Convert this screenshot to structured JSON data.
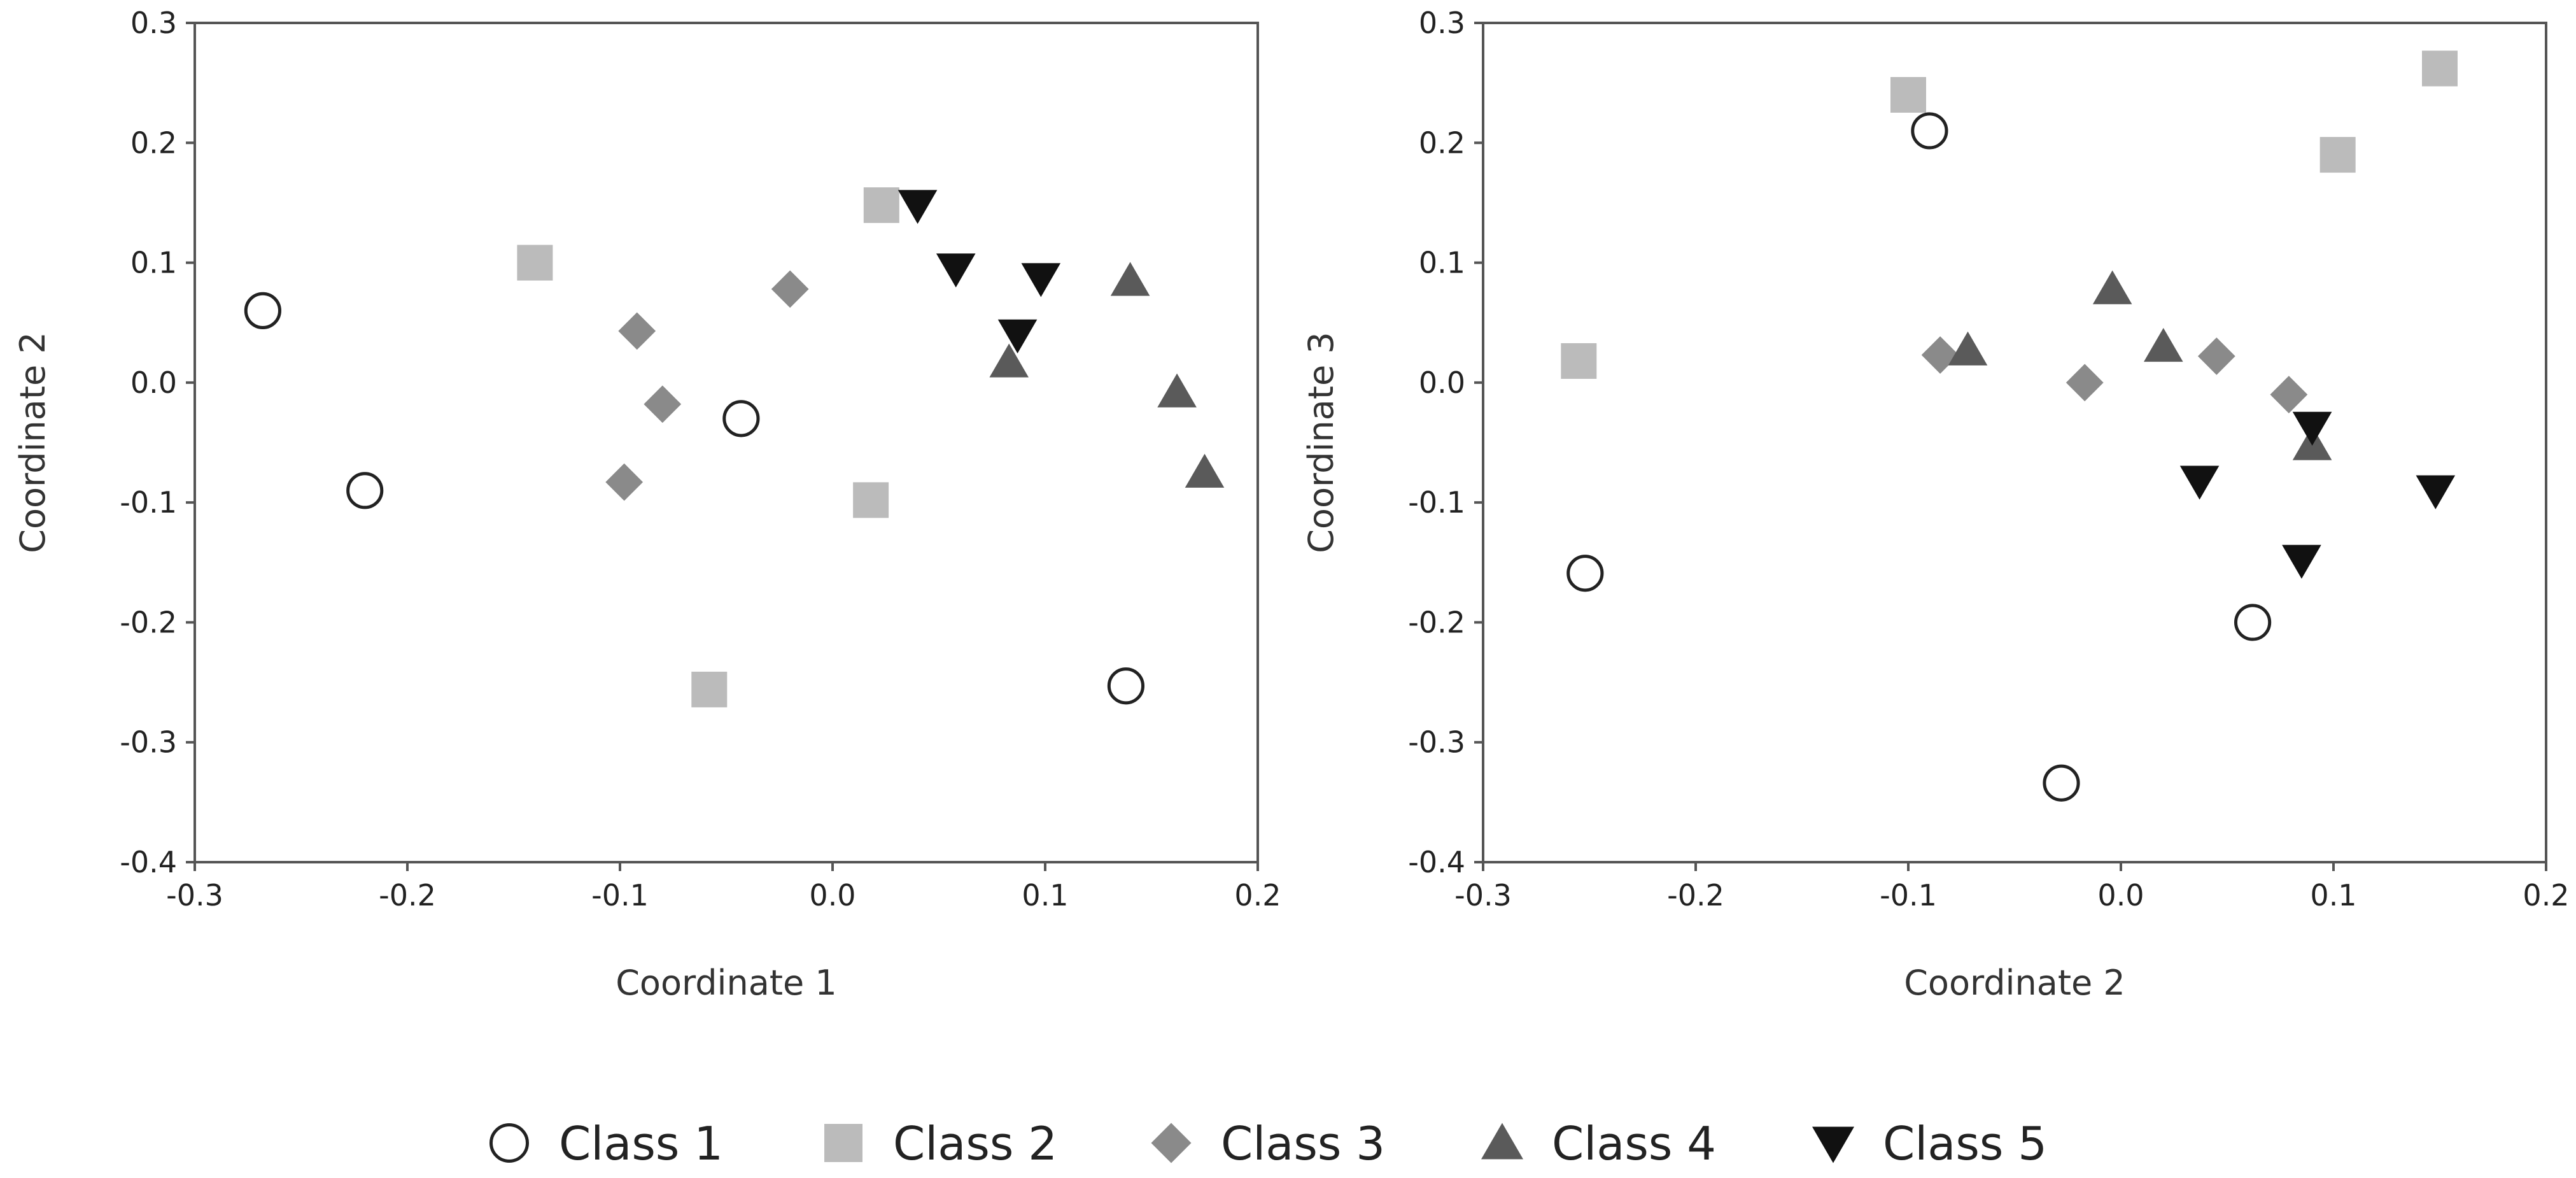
{
  "colors": {
    "class1_fill": "#ffffff",
    "class1_stroke": "#222222",
    "class2": "#bbbbbb",
    "class3": "#8a8a8a",
    "class4": "#5a5a5a",
    "class5": "#111111",
    "frame": "#555555"
  },
  "legend": {
    "placement": "bottom",
    "items": [
      {
        "label": "Class 1",
        "marker": "circle"
      },
      {
        "label": "Class 2",
        "marker": "square"
      },
      {
        "label": "Class 3",
        "marker": "diamond"
      },
      {
        "label": "Class 4",
        "marker": "triangle-up"
      },
      {
        "label": "Class 5",
        "marker": "triangle-down"
      }
    ]
  },
  "chart_data": [
    {
      "type": "scatter",
      "xlabel": "Coordinate 1",
      "ylabel": "Coordinate 2",
      "xlim": [
        -0.3,
        0.2
      ],
      "ylim": [
        -0.4,
        0.3
      ],
      "xticks": [
        "-0.3",
        "-0.2",
        "-0.1",
        "0.0",
        "0.1",
        "0.2"
      ],
      "yticks": [
        "0.3",
        "0.2",
        "0.1",
        "0.0",
        "-0.1",
        "-0.2",
        "-0.3",
        "-0.4"
      ],
      "grid": false,
      "series": [
        {
          "name": "Class 1",
          "points": [
            [
              -0.268,
              0.06
            ],
            [
              -0.22,
              -0.09
            ],
            [
              -0.043,
              -0.03
            ],
            [
              0.138,
              -0.253
            ]
          ]
        },
        {
          "name": "Class 2",
          "points": [
            [
              -0.14,
              0.1
            ],
            [
              0.023,
              0.148
            ],
            [
              0.018,
              -0.098
            ],
            [
              -0.058,
              -0.256
            ]
          ]
        },
        {
          "name": "Class 3",
          "points": [
            [
              -0.092,
              0.043
            ],
            [
              -0.08,
              -0.018
            ],
            [
              -0.098,
              -0.083
            ],
            [
              -0.02,
              0.078
            ]
          ]
        },
        {
          "name": "Class 4",
          "points": [
            [
              0.14,
              0.085
            ],
            [
              0.083,
              0.017
            ],
            [
              0.162,
              -0.008
            ],
            [
              0.175,
              -0.075
            ]
          ]
        },
        {
          "name": "Class 5",
          "points": [
            [
              0.04,
              0.148
            ],
            [
              0.058,
              0.095
            ],
            [
              0.098,
              0.087
            ],
            [
              0.087,
              0.04
            ]
          ]
        }
      ]
    },
    {
      "type": "scatter",
      "xlabel": "Coordinate 2",
      "ylabel": "Coordinate 3",
      "xlim": [
        -0.3,
        0.2
      ],
      "ylim": [
        -0.4,
        0.3
      ],
      "xticks": [
        "-0.3",
        "-0.2",
        "-0.1",
        "0.0",
        "0.1",
        "0.2"
      ],
      "yticks": [
        "0.3",
        "0.2",
        "0.1",
        "0.0",
        "-0.1",
        "-0.2",
        "-0.3",
        "-0.4"
      ],
      "grid": false,
      "series": [
        {
          "name": "Class 1",
          "points": [
            [
              -0.09,
              0.21
            ],
            [
              -0.252,
              -0.159
            ],
            [
              0.062,
              -0.2
            ],
            [
              -0.028,
              -0.334
            ]
          ]
        },
        {
          "name": "Class 2",
          "points": [
            [
              -0.1,
              0.24
            ],
            [
              0.15,
              0.262
            ],
            [
              0.102,
              0.19
            ],
            [
              -0.255,
              0.018
            ]
          ]
        },
        {
          "name": "Class 3",
          "points": [
            [
              -0.085,
              0.023
            ],
            [
              0.045,
              0.022
            ],
            [
              -0.017,
              0.0
            ],
            [
              0.079,
              -0.01
            ]
          ]
        },
        {
          "name": "Class 4",
          "points": [
            [
              -0.004,
              0.078
            ],
            [
              -0.072,
              0.027
            ],
            [
              0.02,
              0.03
            ],
            [
              0.09,
              -0.052
            ]
          ]
        },
        {
          "name": "Class 5",
          "points": [
            [
              0.09,
              -0.037
            ],
            [
              0.037,
              -0.082
            ],
            [
              0.148,
              -0.09
            ],
            [
              0.085,
              -0.148
            ]
          ]
        }
      ]
    }
  ]
}
